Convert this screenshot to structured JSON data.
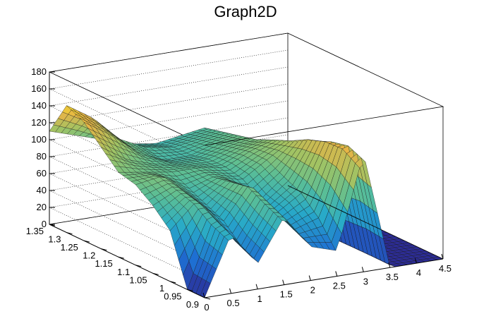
{
  "chart_data": {
    "type": "surface",
    "title": "Graph2D",
    "xlabel": "",
    "ylabel": "",
    "zlabel": "",
    "xlim": [
      0,
      4.5
    ],
    "ylim": [
      0.9,
      1.35
    ],
    "zlim": [
      0,
      180
    ],
    "x_ticks": [
      "0",
      "0.5",
      "1",
      "1.5",
      "2",
      "2.5",
      "3",
      "3.5",
      "4",
      "4.5"
    ],
    "y_ticks": [
      "0.9",
      "0.95",
      "1",
      "1.05",
      "1.1",
      "1.15",
      "1.2",
      "1.25",
      "1.3",
      "1.35"
    ],
    "z_ticks": [
      "0",
      "20",
      "40",
      "60",
      "80",
      "100",
      "120",
      "140",
      "160",
      "180"
    ],
    "grid": true,
    "colormap": "viridis-like",
    "mesh_color": "#000000",
    "x": [
      0,
      0.5,
      1,
      1.5,
      2,
      2.5,
      3,
      3.5,
      4,
      4.5
    ],
    "y": [
      0.9,
      0.95,
      1,
      1.05,
      1.1,
      1.15,
      1.2,
      1.25,
      1.3,
      1.35
    ],
    "z": [
      [
        0,
        70,
        30,
        80,
        40,
        30,
        140,
        0,
        0,
        0
      ],
      [
        0,
        80,
        40,
        90,
        50,
        60,
        150,
        0,
        0,
        0
      ],
      [
        60,
        90,
        60,
        100,
        60,
        80,
        145,
        0,
        0,
        0
      ],
      [
        80,
        95,
        70,
        95,
        65,
        90,
        135,
        0,
        0,
        0
      ],
      [
        95,
        100,
        80,
        90,
        80,
        100,
        120,
        0,
        0,
        0
      ],
      [
        100,
        95,
        90,
        90,
        85,
        100,
        110,
        0,
        0,
        0
      ],
      [
        120,
        100,
        90,
        85,
        85,
        95,
        100,
        0,
        0,
        0
      ],
      [
        140,
        120,
        95,
        80,
        80,
        90,
        95,
        0,
        0,
        0
      ],
      [
        150,
        130,
        100,
        85,
        80,
        85,
        90,
        0,
        0,
        0
      ],
      [
        110,
        100,
        90,
        80,
        75,
        80,
        85,
        0,
        0,
        0
      ]
    ]
  }
}
